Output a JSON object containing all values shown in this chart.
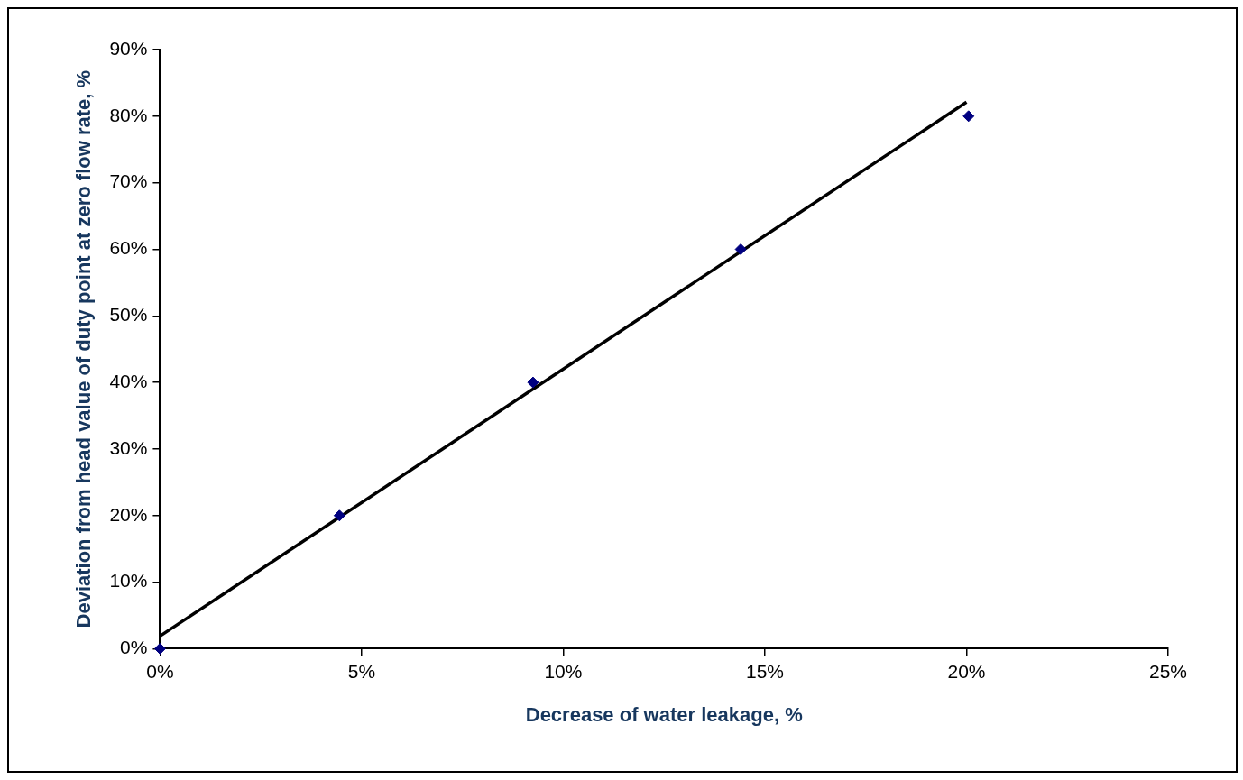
{
  "chart_data": {
    "type": "scatter",
    "xlabel": "Decrease of water leakage, %",
    "ylabel": "Deviation from head value of duty point at zero flow rate, %",
    "series": [
      {
        "color": "#000080",
        "x": [
          0,
          4.45,
          9.25,
          14.4,
          20.05
        ],
        "values": [
          0,
          20,
          40,
          60,
          80
        ],
        "marker": "diamond"
      },
      {
        "type": "line",
        "color": "#000000",
        "x": [
          0,
          20
        ],
        "values": [
          1.9,
          82.1
        ],
        "marker": "none"
      }
    ],
    "xlim": [
      0,
      25
    ],
    "ylim": [
      0,
      90
    ],
    "xticks": [
      {
        "value": 0,
        "label": "0%"
      },
      {
        "value": 5,
        "label": "5%"
      },
      {
        "value": 10,
        "label": "10%"
      },
      {
        "value": 15,
        "label": "15%"
      },
      {
        "value": 20,
        "label": "20%"
      },
      {
        "value": 25,
        "label": "25%"
      }
    ],
    "yticks": [
      {
        "value": 0,
        "label": "0%"
      },
      {
        "value": 10,
        "label": "10%"
      },
      {
        "value": 20,
        "label": "20%"
      },
      {
        "value": 30,
        "label": "30%"
      },
      {
        "value": 40,
        "label": "40%"
      },
      {
        "value": 50,
        "label": "50%"
      },
      {
        "value": 60,
        "label": "60%"
      },
      {
        "value": 70,
        "label": "70%"
      },
      {
        "value": 80,
        "label": "80%"
      },
      {
        "value": 90,
        "label": "90%"
      }
    ],
    "grid": false,
    "legend": false
  }
}
